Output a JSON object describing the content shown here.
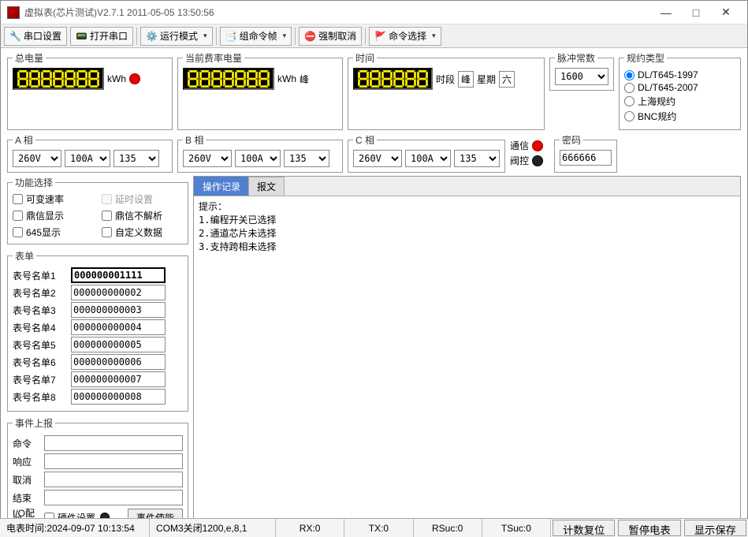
{
  "window": {
    "title": "虚拟表(芯片测试)V2.7.1 2011-05-05 13:50:56"
  },
  "toolbar": {
    "serial_settings": "串口设置",
    "open_serial": "打开串口",
    "run_mode": "运行模式",
    "group_cmd": "组命令帧",
    "force_cancel": "强制取消",
    "cmd_select": "命令选择"
  },
  "panels": {
    "total_power": {
      "legend": "总电量",
      "unit": "kWh",
      "led_digits": 7
    },
    "current_rate": {
      "legend": "当前费率电量",
      "unit": "kWh",
      "peak": "峰",
      "led_digits": 7
    },
    "time": {
      "legend": "时间",
      "period_label": "时段",
      "period_val": "峰",
      "week_label": "星期",
      "week_val": "六",
      "led_digits": 6
    },
    "pulse": {
      "legend": "脉冲常数",
      "value": "1600"
    },
    "protocol": {
      "legend": "规约类型",
      "options": [
        "DL/T645-1997",
        "DL/T645-2007",
        "上海规约",
        "BNC规约"
      ],
      "selected": 0
    },
    "phase_a": {
      "legend": "A 相",
      "v": "260V",
      "a": "100A",
      "p": "135"
    },
    "phase_b": {
      "legend": "B 相",
      "v": "260V",
      "a": "100A",
      "p": "135"
    },
    "phase_c": {
      "legend": "C 相",
      "v": "260V",
      "a": "100A",
      "p": "135"
    },
    "comm": {
      "label1": "通信",
      "label2": "阀控"
    },
    "password": {
      "legend": "密码",
      "value": "666666"
    }
  },
  "func_select": {
    "legend": "功能选择",
    "items": [
      {
        "label": "可变速率",
        "checked": false,
        "disabled": false
      },
      {
        "label": "延时设置",
        "checked": false,
        "disabled": true
      },
      {
        "label": "鼎信显示",
        "checked": false,
        "disabled": false
      },
      {
        "label": "鼎信不解析",
        "checked": false,
        "disabled": false
      },
      {
        "label": "645显示",
        "checked": false,
        "disabled": false
      },
      {
        "label": "自定义数据",
        "checked": false,
        "disabled": false
      }
    ]
  },
  "meter_list": {
    "legend": "表单",
    "rows": [
      {
        "label": "表号名单1",
        "value": "000000001111"
      },
      {
        "label": "表号名单2",
        "value": "000000000002"
      },
      {
        "label": "表号名单3",
        "value": "000000000003"
      },
      {
        "label": "表号名单4",
        "value": "000000000004"
      },
      {
        "label": "表号名单5",
        "value": "000000000005"
      },
      {
        "label": "表号名单6",
        "value": "000000000006"
      },
      {
        "label": "表号名单7",
        "value": "000000000007"
      },
      {
        "label": "表号名单8",
        "value": "000000000008"
      }
    ]
  },
  "event_report": {
    "legend": "事件上报",
    "rows": [
      {
        "label": "命令",
        "value": ""
      },
      {
        "label": "响应",
        "value": ""
      },
      {
        "label": "取消",
        "value": ""
      },
      {
        "label": "结束",
        "value": ""
      }
    ],
    "io_label": "I/O配置",
    "hw_label": "硬件设置",
    "enable_btn": "事件使能"
  },
  "tabs": {
    "op_log": "操作记录",
    "msg": "报文"
  },
  "log_text": "提示：\n1.编程开关已选择\n2.通道芯片未选择\n3.支持跨相未选择",
  "status": {
    "meter_time": "电表时间:2024-09-07 10:13:54",
    "com": "COM3关闭1200,e,8,1",
    "rx": "RX:0",
    "tx": "TX:0",
    "rsuc": "RSuc:0",
    "tsuc": "TSuc:0",
    "btn_reset": "计数复位",
    "btn_pause": "暂停电表",
    "btn_save": "显示保存"
  },
  "colors": {
    "led_on": "#ffee00",
    "led_bg": "#000000",
    "led_border": "#4a4a4a",
    "red_dot": "#e00000",
    "tab_active_bg": "#5080d0",
    "tab_active_fg": "#ffffff"
  }
}
